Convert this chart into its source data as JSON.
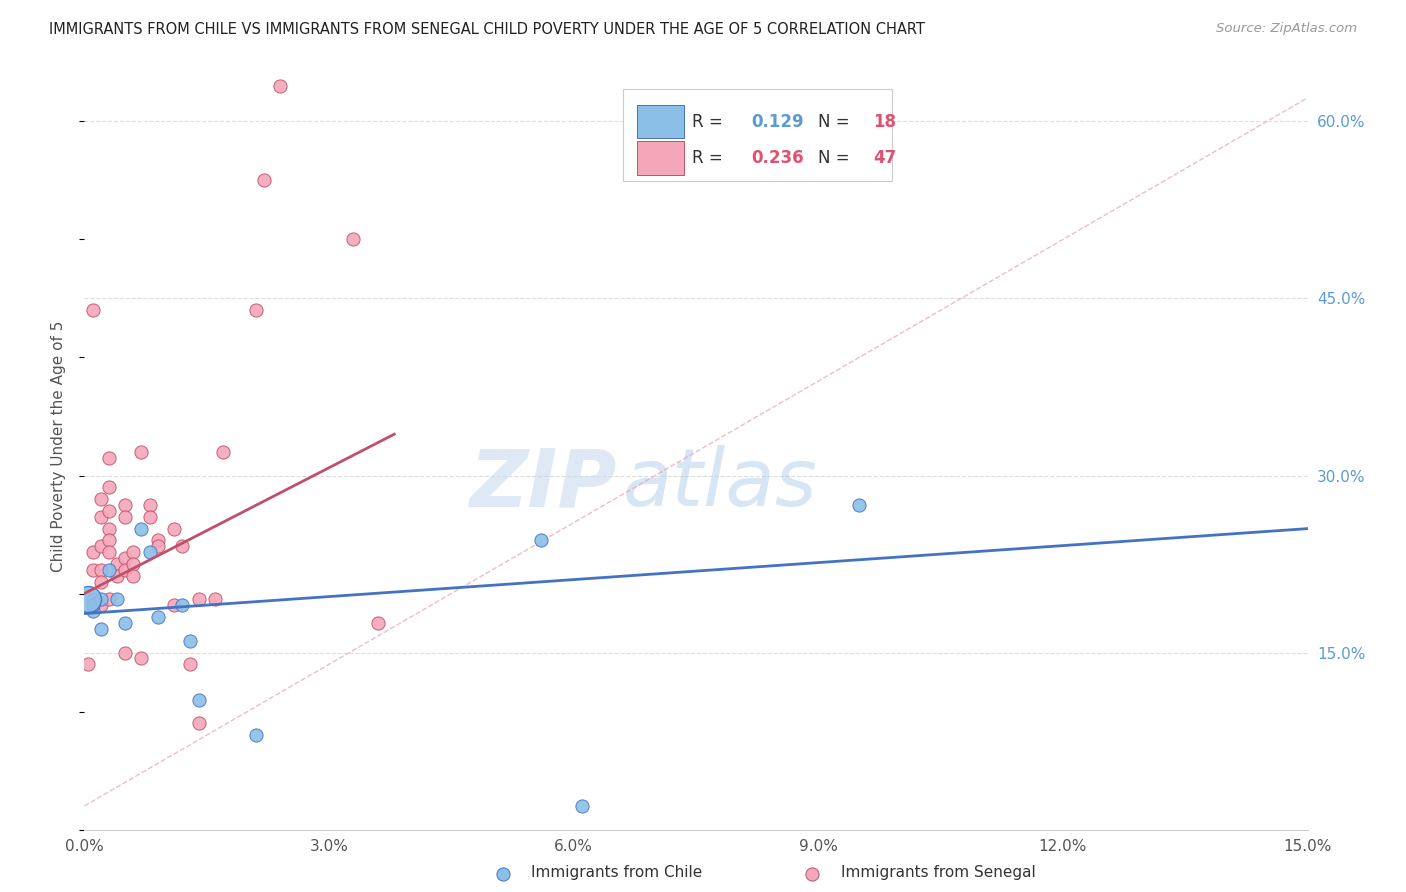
{
  "title": "IMMIGRANTS FROM CHILE VS IMMIGRANTS FROM SENEGAL CHILD POVERTY UNDER THE AGE OF 5 CORRELATION CHART",
  "source": "Source: ZipAtlas.com",
  "ylabel": "Child Poverty Under the Age of 5",
  "xlim": [
    0.0,
    0.15
  ],
  "ylim": [
    0.0,
    0.65
  ],
  "xticks": [
    0.0,
    0.03,
    0.06,
    0.09,
    0.12,
    0.15
  ],
  "xtick_labels": [
    "0.0%",
    "3.0%",
    "6.0%",
    "9.0%",
    "12.0%",
    "15.0%"
  ],
  "yticks_right": [
    0.15,
    0.3,
    0.45,
    0.6
  ],
  "ytick_labels_right": [
    "15.0%",
    "30.0%",
    "45.0%",
    "60.0%"
  ],
  "background_color": "#ffffff",
  "grid_color": "#dddddd",
  "watermark_zip": "ZIP",
  "watermark_atlas": "atlas",
  "chile_color": "#8BBFE8",
  "chile_color_dark": "#4472C4",
  "senegal_color": "#F4A7B9",
  "senegal_color_dark": "#C0506A",
  "chile_R": "0.129",
  "chile_N": "18",
  "senegal_R": "0.236",
  "senegal_N": "47",
  "chile_x": [
    0.0005,
    0.001,
    0.001,
    0.002,
    0.002,
    0.003,
    0.004,
    0.005,
    0.007,
    0.008,
    0.009,
    0.012,
    0.013,
    0.014,
    0.021,
    0.056,
    0.095,
    0.061
  ],
  "chile_y": [
    0.195,
    0.185,
    0.19,
    0.195,
    0.17,
    0.22,
    0.195,
    0.175,
    0.255,
    0.235,
    0.18,
    0.19,
    0.16,
    0.11,
    0.08,
    0.245,
    0.275,
    0.02
  ],
  "chile_sizes": [
    350,
    80,
    80,
    80,
    80,
    80,
    80,
    80,
    80,
    80,
    80,
    80,
    80,
    80,
    80,
    80,
    80,
    80
  ],
  "senegal_x": [
    0.0005,
    0.001,
    0.001,
    0.001,
    0.002,
    0.002,
    0.002,
    0.002,
    0.002,
    0.002,
    0.003,
    0.003,
    0.003,
    0.003,
    0.003,
    0.003,
    0.004,
    0.004,
    0.005,
    0.005,
    0.005,
    0.005,
    0.006,
    0.006,
    0.006,
    0.007,
    0.008,
    0.008,
    0.009,
    0.009,
    0.011,
    0.011,
    0.012,
    0.013,
    0.014,
    0.014,
    0.016,
    0.017,
    0.021,
    0.022,
    0.024,
    0.033,
    0.036,
    0.003,
    0.005,
    0.007,
    0.001
  ],
  "senegal_y": [
    0.14,
    0.22,
    0.235,
    0.195,
    0.28,
    0.265,
    0.24,
    0.22,
    0.21,
    0.19,
    0.315,
    0.29,
    0.27,
    0.255,
    0.245,
    0.235,
    0.225,
    0.215,
    0.275,
    0.265,
    0.23,
    0.22,
    0.235,
    0.225,
    0.215,
    0.32,
    0.275,
    0.265,
    0.245,
    0.24,
    0.255,
    0.19,
    0.24,
    0.14,
    0.195,
    0.09,
    0.195,
    0.32,
    0.44,
    0.55,
    0.63,
    0.5,
    0.175,
    0.195,
    0.15,
    0.145,
    0.44
  ],
  "chile_line_x": [
    0.0,
    0.15
  ],
  "chile_line_y": [
    0.183,
    0.255
  ],
  "senegal_line_x": [
    0.0,
    0.038
  ],
  "senegal_line_y": [
    0.2,
    0.335
  ],
  "diag_line_x": [
    0.0,
    0.15
  ],
  "diag_line_y": [
    0.02,
    0.62
  ]
}
